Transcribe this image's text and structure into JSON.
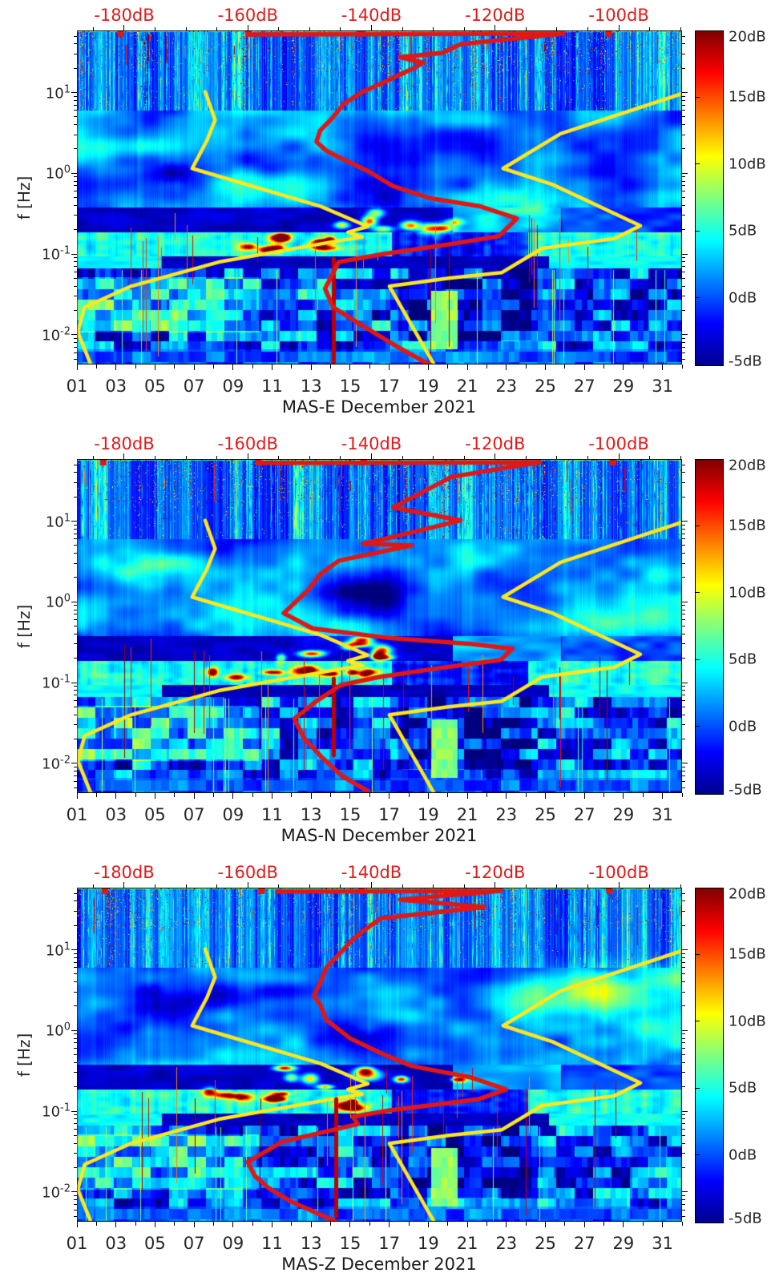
{
  "colors": {
    "background": "#ffffff",
    "curve_red": "#e01717",
    "curve_dark_red": "#c00000",
    "curve_yellow": "#ffe71e",
    "top_axis_label": "#dd1c1c",
    "axis": "#000000",
    "text": "#262626"
  },
  "chart_data": {
    "type": "heatmap",
    "subtype": "seismic-noise-spectrogram-grid",
    "colormap": "jet",
    "grid": "off",
    "x_axis": {
      "tick_labels": [
        "01",
        "03",
        "05",
        "07",
        "09",
        "11",
        "13",
        "15",
        "17",
        "19",
        "21",
        "23",
        "25",
        "27",
        "29",
        "31"
      ],
      "first_day": 1,
      "last_day_plus_one": 32,
      "unit": "day of month"
    },
    "y_axis": {
      "label": "f [Hz]",
      "scale": "log",
      "ticks": [
        {
          "base": "10",
          "exp": "1",
          "logf": 1
        },
        {
          "base": "10",
          "exp": "0",
          "logf": 0
        },
        {
          "base": "10",
          "exp": "-1",
          "logf": -1
        },
        {
          "base": "10",
          "exp": "-2",
          "logf": -2
        }
      ],
      "logf_top": 1.77,
      "logf_bottom": -2.37
    },
    "top_axis": {
      "unit": "dB",
      "labels": [
        "-180dB",
        "-160dB",
        "-140dB",
        "-120dB",
        "-100dB"
      ],
      "db_values": [
        -180,
        -160,
        -140,
        -120,
        -100
      ],
      "u_at_minus180": 0.0781,
      "u_per_db": 0.0102165,
      "tick_step_db": 5
    },
    "colorbar": {
      "labels": [
        "20dB",
        "15dB",
        "10dB",
        "5dB",
        "0dB",
        "-5dB"
      ],
      "values": [
        20,
        15,
        10,
        5,
        0,
        -5
      ],
      "vmin": -5,
      "vmax": 20
    },
    "noise_models": {
      "nlnm_db_logf": [
        [
          -166.9,
          1.01
        ],
        [
          -165.3,
          0.66
        ],
        [
          -166.6,
          0.41
        ],
        [
          -169.0,
          0.06
        ],
        [
          -148.2,
          -0.41
        ],
        [
          -140.6,
          -0.66
        ],
        [
          -143.8,
          -0.73
        ],
        [
          -141.5,
          -0.79
        ],
        [
          -145.6,
          -0.84
        ],
        [
          -164.7,
          -1.1
        ],
        [
          -178.9,
          -1.4
        ],
        [
          -186.4,
          -1.66
        ],
        [
          -187.5,
          -1.97
        ],
        [
          -185.4,
          -2.37
        ]
      ],
      "nhnm_db_logf": [
        [
          -89.6,
          0.99
        ],
        [
          -109.4,
          0.49
        ],
        [
          -118.7,
          0.06
        ],
        [
          -110.7,
          -0.14
        ],
        [
          -96.5,
          -0.65
        ],
        [
          -100.7,
          -0.81
        ],
        [
          -112.4,
          -0.93
        ],
        [
          -118.9,
          -1.23
        ],
        [
          -127.5,
          -1.3
        ],
        [
          -137.1,
          -1.4
        ],
        [
          -129.8,
          -2.38
        ]
      ]
    },
    "panels": [
      {
        "title": "MAS-E December 2021",
        "seed": 11,
        "red_curve_db_logf": [
          [
            -160.0,
            1.72
          ],
          [
            -108.9,
            1.73
          ],
          [
            -125.6,
            1.6
          ],
          [
            -128.6,
            1.49
          ],
          [
            -135.4,
            1.44
          ],
          [
            -131.6,
            1.37
          ],
          [
            -133.5,
            1.29
          ],
          [
            -138.5,
            1.11
          ],
          [
            -141.4,
            1.01
          ],
          [
            -144.5,
            0.86
          ],
          [
            -146.4,
            0.68
          ],
          [
            -148.3,
            0.53
          ],
          [
            -148.9,
            0.39
          ],
          [
            -147.3,
            0.28
          ],
          [
            -145.3,
            0.2
          ],
          [
            -140.4,
            0.02
          ],
          [
            -136.5,
            -0.16
          ],
          [
            -130.5,
            -0.31
          ],
          [
            -122.4,
            -0.41
          ],
          [
            -116.5,
            -0.56
          ],
          [
            -119.4,
            -0.78
          ],
          [
            -127.5,
            -0.88
          ],
          [
            -138.0,
            -1.0
          ],
          [
            -145.3,
            -1.1
          ],
          [
            -147.5,
            -1.43
          ],
          [
            -146.2,
            -1.66
          ],
          [
            -142.3,
            -1.85
          ],
          [
            -135.8,
            -2.15
          ],
          [
            -130.2,
            -2.39
          ]
        ],
        "red_spike": {
          "db": -146.1,
          "logf_top": -1.06,
          "logf_bottom": -2.37
        },
        "red_top_marks_db": [
          -180.6,
          -159.9,
          -141.7,
          -101.6
        ]
      },
      {
        "title": "MAS-N December 2021",
        "seed": 23,
        "red_curve_db_logf": [
          [
            -158.3,
            1.72
          ],
          [
            -112.8,
            1.73
          ],
          [
            -127.0,
            1.55
          ],
          [
            -136.5,
            1.17
          ],
          [
            -125.6,
            1.01
          ],
          [
            -133.5,
            0.86
          ],
          [
            -138.5,
            0.77
          ],
          [
            -141.4,
            0.72
          ],
          [
            -133.5,
            0.7
          ],
          [
            -145.3,
            0.51
          ],
          [
            -148.3,
            0.34
          ],
          [
            -150.2,
            0.15
          ],
          [
            -154.2,
            -0.14
          ],
          [
            -149.5,
            -0.33
          ],
          [
            -136.8,
            -0.45
          ],
          [
            -124.0,
            -0.52
          ],
          [
            -117.2,
            -0.58
          ],
          [
            -119.1,
            -0.72
          ],
          [
            -128.9,
            -0.82
          ],
          [
            -138.7,
            -0.93
          ],
          [
            -144.9,
            -1.03
          ],
          [
            -148.9,
            -1.23
          ],
          [
            -152.5,
            -1.45
          ],
          [
            -150.9,
            -1.69
          ],
          [
            -148.1,
            -1.92
          ],
          [
            -144.9,
            -2.15
          ],
          [
            -140.5,
            -2.35
          ]
        ],
        "red_spike": {
          "db": -146.1,
          "logf_top": -0.95,
          "logf_bottom": -1.9
        },
        "red_top_marks_db": [
          -183.4,
          -158.3,
          -141.3,
          -101.0
        ]
      },
      {
        "title": "MAS-Z December 2021",
        "seed": 37,
        "red_curve_db_logf": [
          [
            -155.3,
            1.72
          ],
          [
            -119.1,
            1.73
          ],
          [
            -135.4,
            1.62
          ],
          [
            -121.7,
            1.53
          ],
          [
            -138.5,
            1.39
          ],
          [
            -141.4,
            1.23
          ],
          [
            -143.4,
            1.1
          ],
          [
            -145.3,
            0.94
          ],
          [
            -147.3,
            0.78
          ],
          [
            -148.3,
            0.59
          ],
          [
            -149.3,
            0.43
          ],
          [
            -148.3,
            0.32
          ],
          [
            -147.3,
            0.13
          ],
          [
            -143.4,
            -0.1
          ],
          [
            -138.5,
            -0.28
          ],
          [
            -133.5,
            -0.44
          ],
          [
            -124.0,
            -0.58
          ],
          [
            -118.2,
            -0.73
          ],
          [
            -122.6,
            -0.85
          ],
          [
            -137.1,
            -0.99
          ],
          [
            -143.0,
            -1.07
          ],
          [
            -142.2,
            -1.16
          ],
          [
            -146.6,
            -1.24
          ],
          [
            -154.5,
            -1.38
          ],
          [
            -160.0,
            -1.63
          ],
          [
            -158.9,
            -1.8
          ],
          [
            -156.7,
            -1.95
          ],
          [
            -153.0,
            -2.12
          ],
          [
            -148.9,
            -2.26
          ],
          [
            -145.7,
            -2.37
          ]
        ],
        "red_spike": {
          "db": -145.7,
          "logf_top": -0.85,
          "logf_bottom": -2.3
        },
        "red_top_marks_db": [
          -183.1,
          -157.8,
          -141.6,
          -101.5
        ]
      }
    ]
  }
}
